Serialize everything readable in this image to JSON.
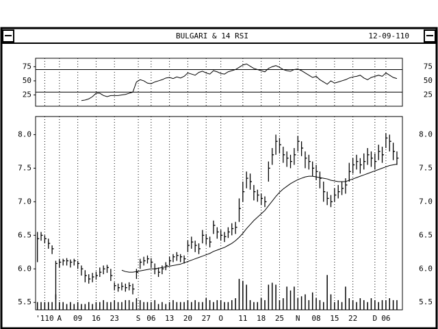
{
  "header": {
    "title": "BULGARI & 14 RSI",
    "date": "12-09-110"
  },
  "chart_data": [
    {
      "type": "line",
      "color": "#000000",
      "xlim": [
        -0.5,
        99.5
      ],
      "ylim": [
        5,
        90
      ],
      "yticks": [
        25,
        50,
        75
      ],
      "hlines": [
        70,
        30
      ],
      "values": [
        null,
        null,
        null,
        null,
        null,
        null,
        null,
        null,
        null,
        null,
        null,
        null,
        15,
        16,
        18,
        22,
        28,
        28,
        24,
        22,
        24,
        24,
        24,
        25,
        26,
        28,
        30,
        48,
        52,
        50,
        46,
        45,
        48,
        50,
        52,
        55,
        56,
        54,
        57,
        55,
        58,
        64,
        62,
        60,
        65,
        67,
        64,
        62,
        68,
        66,
        63,
        62,
        66,
        68,
        70,
        74,
        78,
        80,
        76,
        72,
        70,
        68,
        66,
        72,
        75,
        77,
        74,
        70,
        68,
        67,
        70,
        71,
        68,
        64,
        60,
        56,
        58,
        52,
        48,
        44,
        50,
        46,
        48,
        50,
        52,
        55,
        57,
        58,
        60,
        55,
        52,
        56,
        58,
        60,
        58,
        64,
        60,
        56,
        54
      ]
    },
    {
      "type": "hlc",
      "color": "#000000",
      "xlim": [
        -0.5,
        99.5
      ],
      "ylim": [
        5.39,
        8.27
      ],
      "yticks": [
        5.5,
        {
          "value": 6,
          "label": "6.0"
        },
        6.5,
        {
          "value": 7,
          "label": "7.0"
        },
        7.5,
        {
          "value": 8,
          "label": "8.0"
        }
      ],
      "xticks": [
        {
          "value": 2,
          "label": "'110"
        },
        {
          "value": 6,
          "label": "A"
        },
        {
          "value": 11,
          "label": "09"
        },
        {
          "value": 16,
          "label": "16"
        },
        {
          "value": 21,
          "label": "23"
        },
        {
          "value": 27.5,
          "label": "S"
        },
        {
          "value": 31,
          "label": "06"
        },
        {
          "value": 36,
          "label": "13"
        },
        {
          "value": 41,
          "label": "20"
        },
        {
          "value": 46,
          "label": "27"
        },
        {
          "value": 50,
          "label": "O"
        },
        {
          "value": 56,
          "label": "11"
        },
        {
          "value": 61,
          "label": "18"
        },
        {
          "value": 66,
          "label": "25"
        },
        {
          "value": 71,
          "label": "N"
        },
        {
          "value": 76,
          "label": "08"
        },
        {
          "value": 81,
          "label": "15"
        },
        {
          "value": 86,
          "label": "22"
        },
        {
          "value": 92,
          "label": "D"
        },
        {
          "value": 95,
          "label": "06"
        }
      ],
      "high": [
        6.55,
        6.55,
        6.5,
        6.45,
        6.35,
        6.12,
        6.15,
        6.15,
        6.16,
        6.14,
        6.15,
        6.12,
        6.05,
        5.98,
        5.92,
        5.94,
        5.96,
        6.02,
        6.05,
        6.06,
        6.0,
        5.8,
        5.78,
        5.8,
        5.78,
        5.8,
        5.78,
        6.0,
        6.15,
        6.18,
        6.2,
        6.16,
        6.08,
        6.02,
        6.05,
        6.1,
        6.18,
        6.22,
        6.25,
        6.22,
        6.2,
        6.42,
        6.48,
        6.42,
        6.38,
        6.58,
        6.52,
        6.48,
        6.72,
        6.62,
        6.58,
        6.55,
        6.62,
        6.68,
        6.7,
        7.05,
        7.3,
        7.45,
        7.42,
        7.25,
        7.18,
        7.12,
        7.08,
        7.6,
        7.8,
        8.0,
        7.95,
        7.82,
        7.75,
        7.7,
        7.8,
        7.98,
        7.9,
        7.75,
        7.7,
        7.6,
        7.55,
        7.45,
        7.3,
        7.15,
        7.1,
        7.2,
        7.25,
        7.3,
        7.35,
        7.58,
        7.65,
        7.7,
        7.65,
        7.72,
        7.8,
        7.75,
        7.72,
        7.85,
        7.82,
        8.02,
        8.0,
        7.88,
        7.75
      ],
      "low": [
        6.1,
        6.42,
        6.38,
        6.3,
        6.22,
        5.55,
        6.02,
        6.05,
        6.05,
        6.02,
        6.05,
        6.0,
        5.9,
        5.8,
        5.78,
        5.8,
        5.84,
        5.88,
        5.92,
        5.94,
        5.82,
        5.68,
        5.66,
        5.68,
        5.66,
        5.68,
        5.62,
        5.85,
        6.0,
        6.05,
        6.08,
        6.02,
        5.92,
        5.88,
        5.92,
        5.98,
        6.05,
        6.1,
        6.12,
        6.1,
        6.08,
        6.25,
        6.3,
        6.25,
        6.22,
        6.38,
        6.36,
        6.32,
        6.52,
        6.45,
        6.42,
        6.4,
        6.46,
        6.5,
        6.52,
        6.7,
        7.0,
        7.2,
        7.18,
        7.02,
        7.0,
        6.95,
        6.92,
        7.3,
        7.55,
        7.7,
        7.72,
        7.58,
        7.52,
        7.5,
        7.55,
        7.75,
        7.68,
        7.5,
        7.48,
        7.38,
        7.32,
        7.2,
        7.0,
        6.95,
        6.92,
        7.0,
        7.05,
        7.1,
        7.12,
        7.3,
        7.42,
        7.48,
        7.42,
        7.48,
        7.55,
        7.52,
        7.48,
        7.62,
        7.58,
        7.8,
        7.75,
        7.62,
        7.55
      ],
      "close": [
        6.45,
        6.5,
        6.45,
        6.38,
        6.3,
        6.08,
        6.1,
        6.12,
        6.12,
        6.1,
        6.12,
        6.08,
        6.0,
        5.9,
        5.85,
        5.88,
        5.9,
        5.95,
        6.0,
        6.02,
        5.9,
        5.75,
        5.72,
        5.74,
        5.72,
        5.75,
        5.7,
        5.95,
        6.1,
        6.12,
        6.15,
        6.1,
        6.0,
        5.95,
        6.0,
        6.05,
        6.12,
        6.18,
        6.2,
        6.18,
        6.15,
        6.35,
        6.4,
        6.35,
        6.3,
        6.5,
        6.45,
        6.4,
        6.65,
        6.55,
        6.5,
        6.48,
        6.55,
        6.6,
        6.62,
        6.9,
        7.15,
        7.35,
        7.3,
        7.15,
        7.1,
        7.05,
        7.0,
        7.5,
        7.7,
        7.9,
        7.85,
        7.7,
        7.65,
        7.6,
        7.7,
        7.9,
        7.8,
        7.65,
        7.6,
        7.5,
        7.45,
        7.35,
        7.15,
        7.05,
        7.0,
        7.1,
        7.15,
        7.2,
        7.25,
        7.45,
        7.55,
        7.6,
        7.55,
        7.6,
        7.7,
        7.65,
        7.6,
        7.75,
        7.7,
        7.95,
        7.9,
        7.75,
        7.65
      ],
      "ma": [
        null,
        null,
        null,
        null,
        null,
        null,
        null,
        null,
        null,
        null,
        null,
        null,
        null,
        null,
        null,
        null,
        null,
        null,
        null,
        null,
        null,
        null,
        null,
        5.98,
        5.96,
        5.95,
        5.95,
        5.96,
        5.97,
        5.98,
        5.99,
        6.0,
        6.0,
        6.01,
        6.02,
        6.03,
        6.04,
        6.05,
        6.06,
        6.07,
        6.09,
        6.11,
        6.13,
        6.15,
        6.17,
        6.19,
        6.21,
        6.23,
        6.26,
        6.28,
        6.3,
        6.32,
        6.35,
        6.38,
        6.42,
        6.47,
        6.53,
        6.6,
        6.66,
        6.72,
        6.77,
        6.82,
        6.87,
        6.94,
        7.01,
        7.08,
        7.14,
        7.19,
        7.23,
        7.27,
        7.3,
        7.33,
        7.35,
        7.37,
        7.38,
        7.38,
        7.37,
        7.36,
        7.35,
        7.34,
        7.32,
        7.31,
        7.3,
        7.3,
        7.3,
        7.32,
        7.34,
        7.36,
        7.38,
        7.4,
        7.42,
        7.44,
        7.46,
        7.48,
        7.5,
        7.52,
        7.54,
        7.55,
        7.56
      ],
      "volume_ylim": [
        0,
        100
      ],
      "volume": [
        4,
        4,
        4,
        4,
        4,
        8,
        4,
        4,
        3,
        4,
        3,
        4,
        3,
        3,
        4,
        3,
        4,
        4,
        5,
        4,
        4,
        5,
        4,
        4,
        5,
        5,
        4,
        6,
        5,
        4,
        4,
        4,
        5,
        3,
        4,
        3,
        4,
        5,
        4,
        4,
        4,
        5,
        4,
        5,
        4,
        4,
        6,
        5,
        4,
        5,
        5,
        4,
        4,
        5,
        6,
        16,
        15,
        13,
        5,
        4,
        4,
        6,
        5,
        13,
        14,
        13,
        5,
        6,
        12,
        10,
        12,
        6,
        7,
        8,
        5,
        9,
        6,
        5,
        4,
        18,
        8,
        4,
        5,
        4,
        12,
        6,
        5,
        4,
        6,
        5,
        4,
        6,
        5,
        4,
        5,
        5,
        6,
        5,
        5
      ]
    }
  ]
}
